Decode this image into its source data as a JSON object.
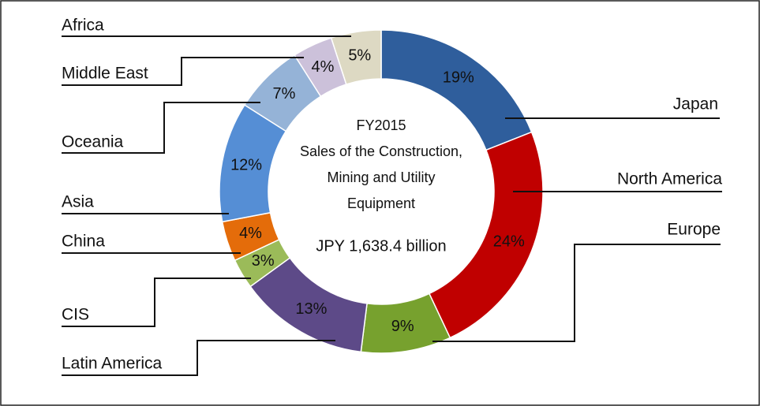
{
  "chart_data": {
    "type": "donut",
    "title_lines": [
      "FY2015",
      "Sales of the Construction,",
      "Mining and Utility",
      "Equipment"
    ],
    "total_label": "JPY 1,638.4 billion",
    "categories": [
      "Japan",
      "North America",
      "Europe",
      "Latin America",
      "CIS",
      "China",
      "Asia",
      "Oceania",
      "Middle East",
      "Africa"
    ],
    "values": [
      19,
      24,
      9,
      13,
      3,
      4,
      12,
      7,
      4,
      5
    ],
    "value_labels": [
      "19%",
      "24%",
      "9%",
      "13%",
      "3%",
      "4%",
      "12%",
      "7%",
      "4%",
      "5%"
    ],
    "colors": [
      "#2f5e9c",
      "#c00000",
      "#77a12e",
      "#5d4a88",
      "#9bbb59",
      "#e46c0a",
      "#558ed5",
      "#95b3d7",
      "#ccc1da",
      "#ddd9c3"
    ]
  }
}
